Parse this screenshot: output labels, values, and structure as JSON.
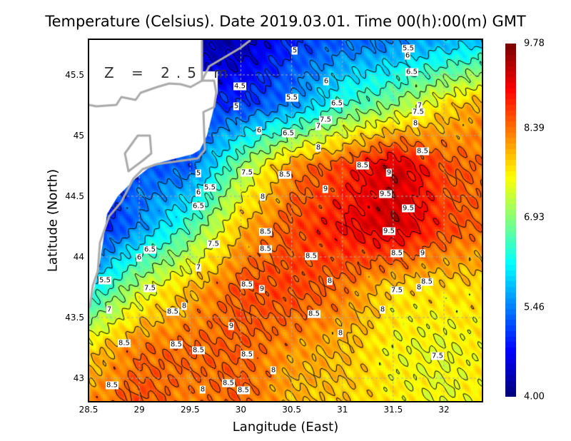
{
  "chart_data": {
    "type": "heatmap",
    "title": "Temperature (Celsius). Date 2019.03.01. Time 00(h):00(m) GMT",
    "xlabel": "Langitude (East)",
    "ylabel": "Latitude (North)",
    "annotation": "Z = 2.5 m",
    "xlim": [
      28.5,
      32.38
    ],
    "ylim": [
      42.8,
      45.79
    ],
    "x_ticks": [
      "28.5",
      "29",
      "29.5",
      "30",
      "30.5",
      "31",
      "31.5",
      "32"
    ],
    "y_ticks": [
      "45.5",
      "45",
      "44.5",
      "44",
      "43.5",
      "43"
    ],
    "grid": true,
    "colorbar": {
      "min": 4.0,
      "max": 9.78,
      "ticks": [
        "9.78",
        "8.39",
        "6.93",
        "5.46",
        "4.00"
      ],
      "colormap": "jet"
    },
    "grid_lon": [
      28.5,
      29,
      29.5,
      30,
      30.5,
      31,
      31.5,
      32,
      32.4
    ],
    "grid_lat": [
      45.75,
      45.25,
      44.75,
      44.25,
      43.75,
      43.25,
      42.85
    ],
    "temperature": [
      [
        null,
        null,
        null,
        4.3,
        5.0,
        5.3,
        5.5,
        5.8,
        6.0
      ],
      [
        null,
        null,
        null,
        5.0,
        5.5,
        6.5,
        7.0,
        7.8,
        8.2
      ],
      [
        null,
        null,
        5.2,
        7.0,
        8.3,
        8.7,
        9.4,
        8.6,
        8.4
      ],
      [
        4.5,
        5.5,
        6.6,
        8.0,
        8.6,
        9.0,
        9.4,
        8.7,
        8.4
      ],
      [
        6.0,
        7.3,
        8.0,
        8.6,
        8.7,
        8.4,
        7.8,
        7.8,
        7.8
      ],
      [
        7.8,
        8.4,
        8.5,
        8.5,
        8.2,
        8.0,
        7.6,
        7.5,
        7.7
      ],
      [
        8.2,
        8.6,
        8.3,
        8.5,
        8.0,
        7.9,
        7.7,
        7.5,
        7.7
      ]
    ],
    "contour_levels": [
      4.5,
      5,
      5.5,
      6,
      6.5,
      7,
      7.5,
      8,
      8.5,
      9,
      9.5
    ],
    "contour_labels": [
      "5",
      "5.5",
      "6",
      "6.5",
      "4.5",
      "5",
      "6",
      "5.5",
      "6.5",
      "7",
      "7.5",
      "8",
      "7.5",
      "7",
      "6",
      "6.5",
      "8",
      "8.5",
      "5",
      "7.5",
      "8.5",
      "8.5",
      "9",
      "6",
      "5.5",
      "8",
      "9",
      "9.5",
      "6.5",
      "9.5",
      "8.5",
      "9.5",
      "6.5",
      "6",
      "7.5",
      "8.5",
      "7",
      "8.5",
      "8.5",
      "9",
      "5.5",
      "7.5",
      "8",
      "8.5",
      "9",
      "8.5",
      "8",
      "7.5",
      "7",
      "8.5",
      "8",
      "8.5",
      "8",
      "9",
      "8",
      "8.5",
      "8.5",
      "8.5",
      "8.5",
      "7.5",
      "8",
      "8.5",
      "8.5",
      "8",
      "8.5"
    ]
  }
}
